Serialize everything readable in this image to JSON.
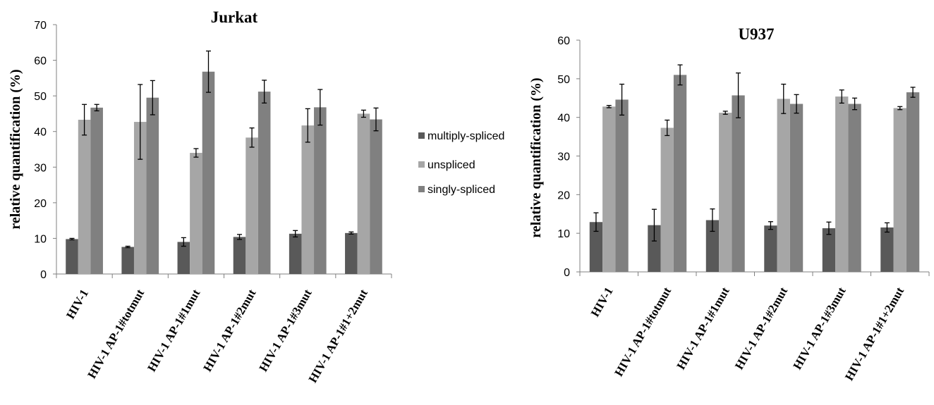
{
  "legend": [
    {
      "name": "multiply-spliced",
      "color": "#595959"
    },
    {
      "name": "unspliced",
      "color": "#a6a6a6"
    },
    {
      "name": "singly-spliced",
      "color": "#808080"
    }
  ],
  "chart_data": [
    {
      "type": "bar",
      "title": "Jurkat",
      "ylabel": "relative quantification (%)",
      "xlabel": "",
      "ylim": [
        0,
        70
      ],
      "yticks": [
        0,
        10,
        20,
        30,
        40,
        50,
        60,
        70
      ],
      "categories": [
        "HIV-1",
        "HIV-1 AP-1#totmut",
        "HIV-1 AP-1#1mut",
        "HIV-1 AP-1#2mut",
        "HIV-1 AP-1#3mut",
        "HIV-1 AP-1#1+2mut"
      ],
      "series": [
        {
          "name": "multiply-spliced",
          "values": [
            9.8,
            7.6,
            9.0,
            10.4,
            11.3,
            11.5
          ],
          "errors": [
            0.2,
            0.2,
            1.2,
            0.7,
            0.9,
            0.3
          ]
        },
        {
          "name": "unspliced",
          "values": [
            43.3,
            42.7,
            34.0,
            38.3,
            41.7,
            45.0
          ],
          "errors": [
            4.3,
            10.5,
            1.2,
            2.7,
            4.7,
            1.0
          ]
        },
        {
          "name": "singly-spliced",
          "values": [
            46.7,
            49.5,
            56.8,
            51.2,
            46.8,
            43.4
          ],
          "errors": [
            0.9,
            4.8,
            5.8,
            3.2,
            5.0,
            3.2
          ]
        }
      ]
    },
    {
      "type": "bar",
      "title": "U937",
      "ylabel": "relative quantification (%)",
      "xlabel": "",
      "ylim": [
        0,
        60
      ],
      "yticks": [
        0,
        10,
        20,
        30,
        40,
        50,
        60
      ],
      "categories": [
        "HIV-1",
        "HIV-1 AP-1#totmut",
        "HIV-1 AP-1#1mut",
        "HIV-1 AP-1#2mut",
        "HIV-1 AP-1#3mut",
        "HIV-1 AP-1#1+2mut"
      ],
      "series": [
        {
          "name": "multiply-spliced",
          "values": [
            12.9,
            12.1,
            13.4,
            12.0,
            11.3,
            11.5
          ],
          "errors": [
            2.4,
            4.1,
            2.9,
            1.0,
            1.6,
            1.2
          ]
        },
        {
          "name": "unspliced",
          "values": [
            42.8,
            37.3,
            41.2,
            44.8,
            45.4,
            42.4
          ],
          "errors": [
            0.3,
            2.0,
            0.4,
            3.8,
            1.7,
            0.4
          ]
        },
        {
          "name": "singly-spliced",
          "values": [
            44.6,
            51.0,
            45.7,
            43.5,
            43.5,
            46.5
          ],
          "errors": [
            4.0,
            2.6,
            5.8,
            2.4,
            1.5,
            1.3
          ]
        }
      ]
    }
  ]
}
